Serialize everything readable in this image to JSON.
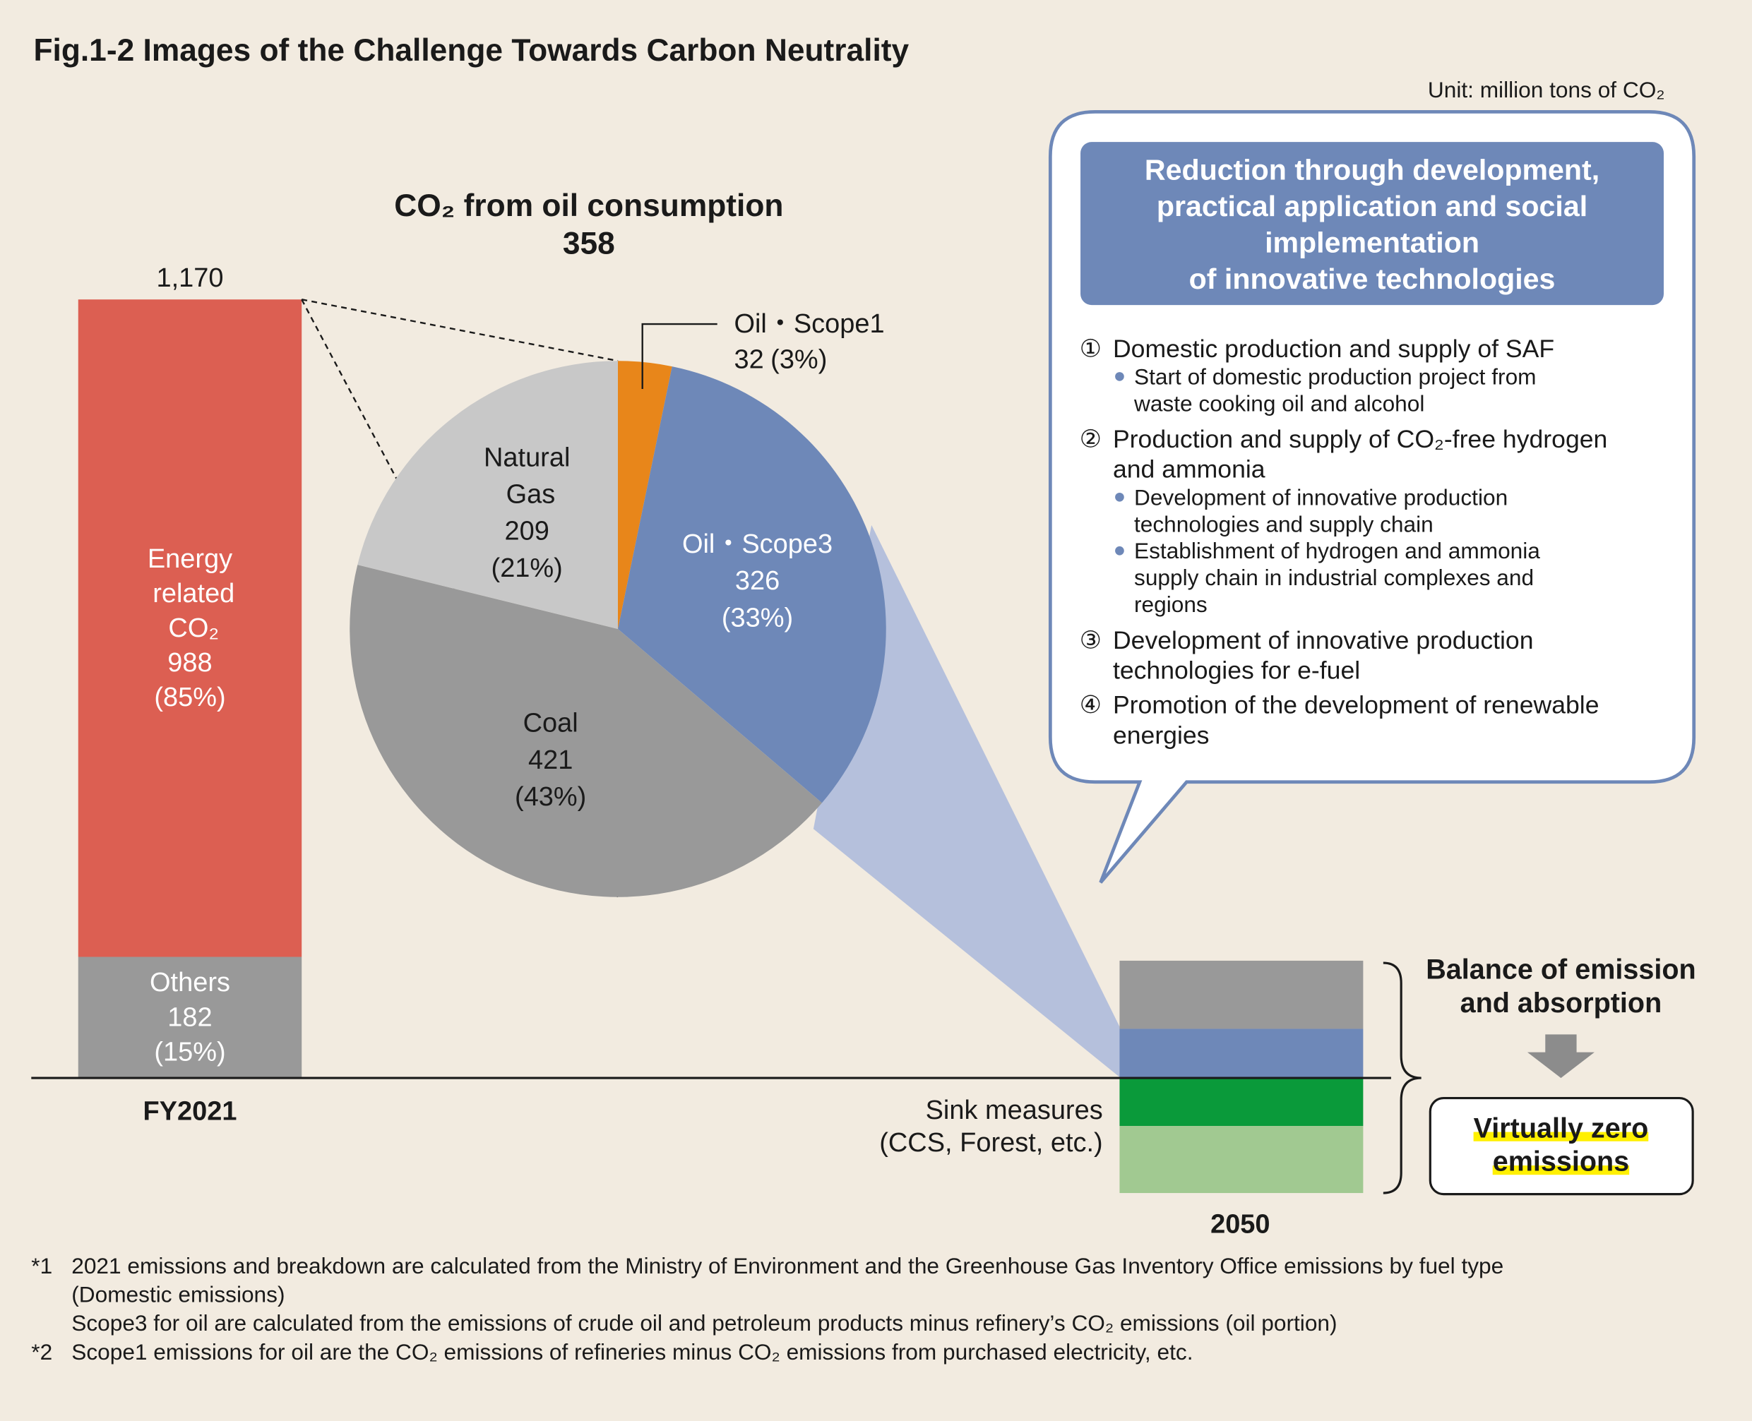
{
  "title": "Fig.1-2  Images of the Challenge Towards Carbon Neutrality",
  "unit": "Unit: million tons of CO₂",
  "chart_data": [
    {
      "type": "stacked-bar",
      "categories": [
        "FY2021"
      ],
      "total": {
        "value": 1170,
        "label": "1,170"
      },
      "series": [
        {
          "name": "Others",
          "color": "#999999",
          "values": [
            182
          ],
          "percent_labels": [
            "(15%)"
          ]
        },
        {
          "name": "Energy related CO₂",
          "color": "#dc5f52",
          "values": [
            988
          ],
          "percent_labels": [
            "(85%)"
          ]
        }
      ]
    },
    {
      "type": "pie",
      "title": "CO₂ from oil consumption",
      "total": 358,
      "categories": [
        "Oil・Scope1",
        "Oil・Scope3",
        "Coal",
        "Natural Gas"
      ],
      "values": [
        32,
        326,
        421,
        209
      ],
      "percent_labels": [
        "(3%)",
        "(33%)",
        "(43%)",
        "(21%)"
      ],
      "colors": [
        "#e8861a",
        "#6e88b8",
        "#999999",
        "#c8c8c8"
      ]
    }
  ],
  "callout": {
    "heading": [
      "Reduction through development,",
      "practical application and social",
      "implementation",
      "of innovative technologies"
    ],
    "items": [
      {
        "num": "①",
        "lines": [
          "Domestic production and supply of SAF"
        ],
        "bullets": [
          [
            "Start of domestic production project from",
            "waste cooking oil and alcohol"
          ]
        ]
      },
      {
        "num": "②",
        "lines": [
          "Production and supply of CO₂-free hydrogen",
          "and ammonia"
        ],
        "bullets": [
          [
            "Development of innovative production",
            "technologies and supply chain"
          ],
          [
            "Establishment of hydrogen and ammonia",
            "supply chain in industrial complexes and",
            "regions"
          ]
        ]
      },
      {
        "num": "③",
        "lines": [
          "Development of innovative production",
          "technologies for e-fuel"
        ],
        "bullets": []
      },
      {
        "num": "④",
        "lines": [
          "Promotion of the development of renewable",
          "energies"
        ],
        "bullets": []
      }
    ]
  },
  "target": {
    "year": "2050",
    "sink_label": [
      "Sink measures",
      "(CCS, Forest, etc.)"
    ],
    "balance": [
      "Balance of emission",
      "and absorption"
    ],
    "result": [
      "Virtually zero",
      "emissions"
    ]
  },
  "notes": [
    {
      "mark": "*1",
      "lines": [
        "2021 emissions and breakdown are calculated from the Ministry of Environment and the Greenhouse Gas Inventory Office emissions by fuel type",
        "(Domestic emissions)",
        "Scope3 for oil are calculated from the emissions of crude oil and petroleum products minus refinery’s CO₂ emissions (oil portion)"
      ]
    },
    {
      "mark": "*2",
      "lines": [
        "Scope1 emissions for oil are the CO₂ emissions of refineries minus CO₂ emissions from purchased electricity, etc."
      ]
    }
  ]
}
